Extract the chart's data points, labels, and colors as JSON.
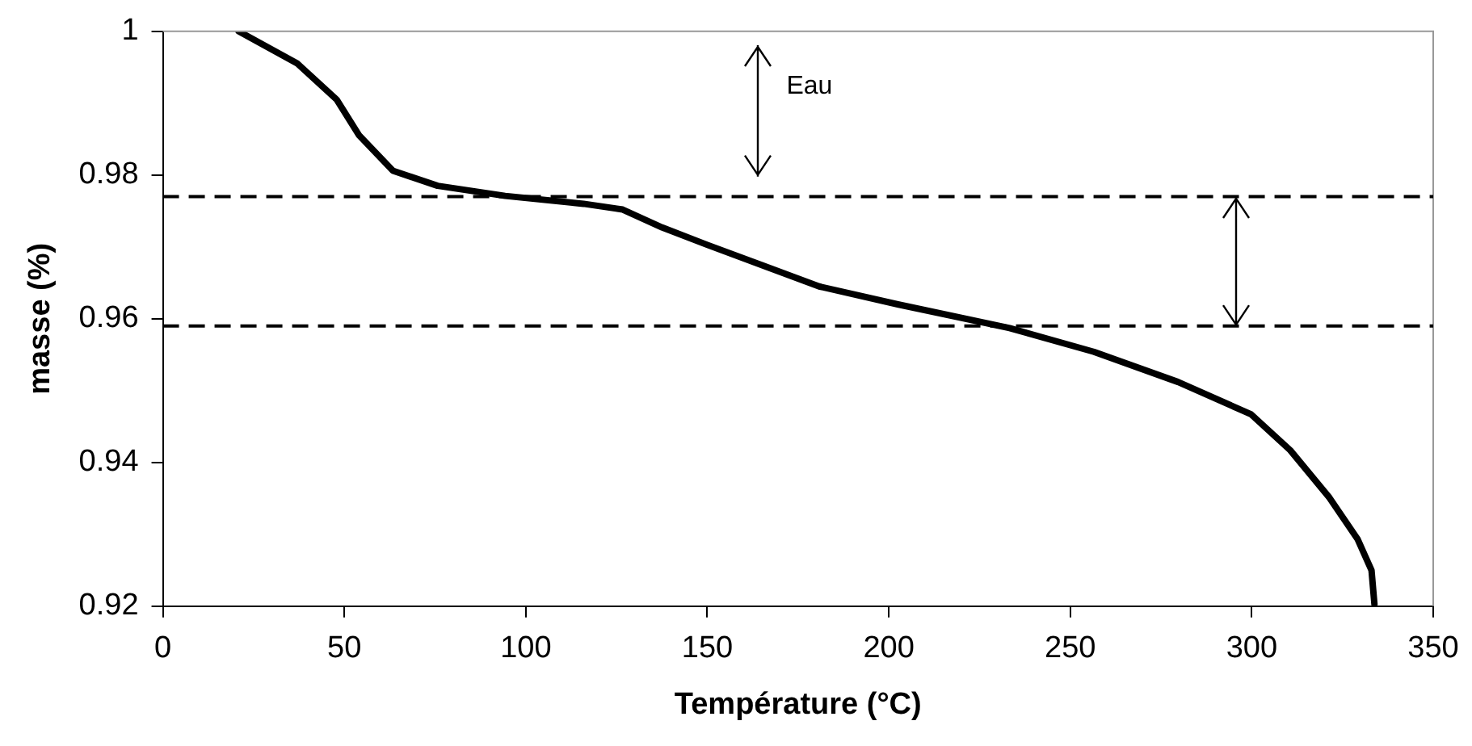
{
  "chart_data": {
    "type": "line",
    "xlabel": "Température (°C)",
    "ylabel": "masse (%)",
    "x": [
      20.9,
      37.1,
      47.9,
      54.1,
      63.4,
      75.7,
      94.3,
      115.9,
      126.7,
      137.6,
      149.9,
      165.4,
      180.8,
      202.5,
      233.3,
      256.5,
      279.7,
      299.8,
      310.6,
      321.4,
      329.2,
      333,
      333.8
    ],
    "series": [
      {
        "color": "#000000",
        "values": [
          1.0,
          0.9955,
          0.9905,
          0.9855,
          0.9806,
          0.9785,
          0.9771,
          0.976,
          0.9752,
          0.9727,
          0.9703,
          0.9674,
          0.9645,
          0.962,
          0.9587,
          0.9554,
          0.9512,
          0.9467,
          0.9417,
          0.9351,
          0.9293,
          0.925,
          0.9203
        ]
      }
    ],
    "xlim": [
      0,
      350
    ],
    "xticks": [
      0,
      50,
      100,
      150,
      200,
      250,
      300,
      350
    ],
    "ylim": [
      0.92,
      1
    ],
    "yticks": [
      0.92,
      0.94,
      0.96,
      0.98,
      1
    ],
    "ref_lines": [
      {
        "axis": "y",
        "value": 0.977,
        "color": "#000000",
        "line_style": "dashed"
      },
      {
        "axis": "y",
        "value": 0.959,
        "color": "#000000",
        "line_style": "dashed"
      }
    ],
    "annotations": [
      "Eau"
    ],
    "grid": false,
    "legend": false,
    "marker": "none",
    "line_style": "solid"
  }
}
